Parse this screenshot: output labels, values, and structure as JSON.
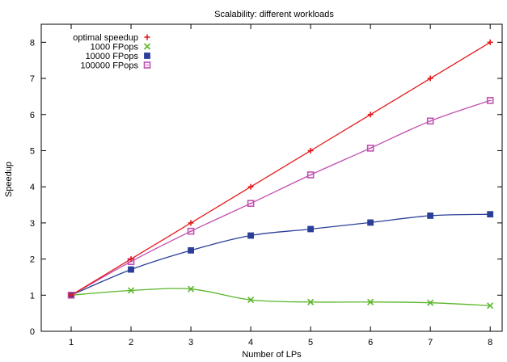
{
  "chart_data": {
    "type": "line",
    "title": "Scalability: different workloads",
    "xlabel": "Number of LPs",
    "ylabel": "Speedup",
    "xlim": [
      0.5,
      8.2
    ],
    "ylim": [
      0,
      8.5
    ],
    "x_ticks": [
      1,
      2,
      3,
      4,
      5,
      6,
      7,
      8
    ],
    "y_ticks": [
      0,
      1,
      2,
      3,
      4,
      5,
      6,
      7,
      8
    ],
    "grid": false,
    "legend_position": "top-left",
    "x": [
      1,
      2,
      3,
      4,
      5,
      6,
      7,
      8
    ],
    "series": [
      {
        "name": "optimal speedup",
        "values": [
          1,
          2,
          3,
          4,
          5,
          6,
          7,
          8
        ],
        "color": "#e41a1c",
        "marker": "plus",
        "smooth": false
      },
      {
        "name": "1000 FPops",
        "values": [
          1.0,
          1.13,
          1.17,
          0.87,
          0.81,
          0.81,
          0.79,
          0.71
        ],
        "color": "#5ab52a",
        "marker": "x",
        "smooth": true
      },
      {
        "name": "10000 FPops",
        "values": [
          1.0,
          1.71,
          2.24,
          2.65,
          2.83,
          3.01,
          3.2,
          3.24
        ],
        "color": "#2b3f99",
        "marker": "filled-square",
        "smooth": true
      },
      {
        "name": "100000 FPops",
        "values": [
          1.0,
          1.93,
          2.77,
          3.54,
          4.33,
          5.07,
          5.82,
          6.39
        ],
        "color": "#c04fb0",
        "marker": "open-square",
        "smooth": true
      }
    ]
  }
}
